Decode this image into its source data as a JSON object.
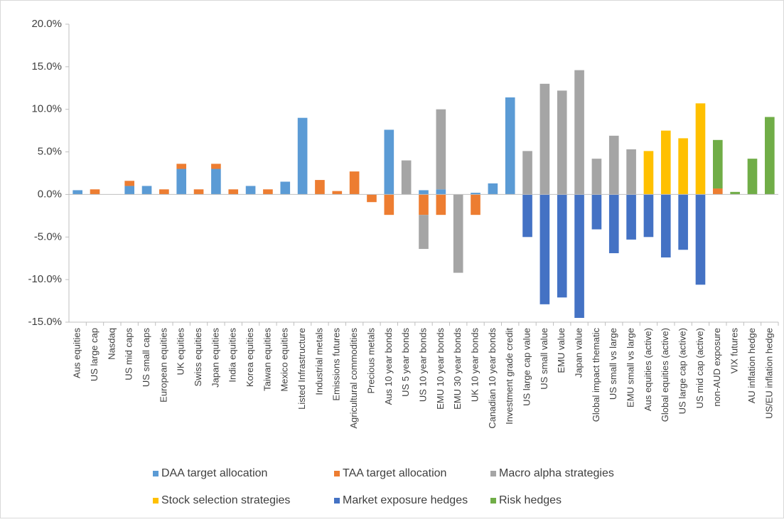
{
  "chart_data": {
    "type": "bar",
    "stacked": true,
    "categories": [
      "Aus equities",
      "US large cap",
      "Nasdaq",
      "US mid caps",
      "US small caps",
      "European equities",
      "UK equities",
      "Swiss equities",
      "Japan equities",
      "India equities",
      "Korea equities",
      "Taiwan equities",
      "Mexico equities",
      "Listed Infrastructure",
      "Industrial metals",
      "Emissions futures",
      "Agricultural commodities",
      "Precious metals",
      "Aus 10 year bonds",
      "US 5 year bonds",
      "US 10 year bonds",
      "EMU 10 year bonds",
      "EMU 30 year bonds",
      "UK 10 year bonds",
      "Canadian 10 year bonds",
      "Investment grade credit",
      "US large cap value",
      "US small value",
      "EMU value",
      "Japan value",
      "Global impact thematic",
      "US small vs large",
      "EMU small vs large",
      "Aus equities (active)",
      "Global equities (active)",
      "US large cap (active)",
      "US mid cap (active)",
      "non-AUD exposure",
      "VIX futures",
      "AU inflation hedge",
      "US/EU inflation hedge"
    ],
    "series": [
      {
        "name": "DAA target allocation",
        "color": "#5b9bd5",
        "values": [
          0.5,
          null,
          null,
          1.0,
          1.0,
          null,
          3.0,
          null,
          3.0,
          null,
          1.0,
          null,
          1.5,
          9.0,
          null,
          null,
          null,
          null,
          7.6,
          null,
          0.5,
          0.6,
          null,
          0.2,
          1.3,
          11.4,
          null,
          null,
          null,
          null,
          null,
          null,
          null,
          null,
          null,
          null,
          null,
          null,
          null,
          null,
          null
        ]
      },
      {
        "name": "TAA target allocation",
        "color": "#ed7d31",
        "values": [
          null,
          0.6,
          null,
          0.6,
          null,
          0.6,
          0.6,
          0.6,
          0.6,
          0.6,
          null,
          0.6,
          null,
          null,
          1.7,
          0.4,
          2.7,
          -0.9,
          -2.4,
          null,
          -2.4,
          -2.4,
          null,
          -2.4,
          null,
          null,
          null,
          null,
          null,
          null,
          null,
          null,
          null,
          null,
          null,
          null,
          null,
          0.7,
          null,
          null,
          null
        ]
      },
      {
        "name": "Macro alpha strategies",
        "color": "#a5a5a5",
        "values": [
          null,
          null,
          null,
          null,
          null,
          null,
          null,
          null,
          null,
          null,
          null,
          null,
          null,
          null,
          null,
          null,
          null,
          null,
          null,
          4.0,
          -4.0,
          9.4,
          -9.2,
          null,
          null,
          null,
          5.1,
          13.0,
          12.2,
          14.6,
          4.2,
          6.9,
          5.3,
          null,
          null,
          null,
          null,
          null,
          null,
          null,
          null
        ]
      },
      {
        "name": "Stock selection strategies",
        "color": "#ffc000",
        "values": [
          null,
          null,
          null,
          null,
          null,
          null,
          null,
          null,
          null,
          null,
          null,
          null,
          null,
          null,
          null,
          null,
          null,
          null,
          null,
          null,
          null,
          null,
          null,
          null,
          null,
          null,
          null,
          null,
          null,
          null,
          null,
          null,
          null,
          5.1,
          7.5,
          6.6,
          10.7,
          null,
          null,
          null,
          null
        ]
      },
      {
        "name": "Market exposure hedges",
        "color": "#4472c4",
        "values": [
          null,
          null,
          null,
          null,
          null,
          null,
          null,
          null,
          null,
          null,
          null,
          null,
          null,
          null,
          null,
          null,
          null,
          null,
          null,
          null,
          null,
          null,
          null,
          null,
          null,
          null,
          -5.0,
          -12.9,
          -12.1,
          -14.5,
          -4.1,
          -6.9,
          -5.3,
          -5.0,
          -7.4,
          -6.5,
          -10.6,
          null,
          null,
          null,
          null
        ]
      },
      {
        "name": "Risk hedges",
        "color": "#70ad47",
        "values": [
          null,
          null,
          null,
          null,
          null,
          null,
          null,
          null,
          null,
          null,
          null,
          null,
          null,
          null,
          null,
          null,
          null,
          null,
          null,
          null,
          null,
          null,
          null,
          null,
          null,
          null,
          null,
          null,
          null,
          null,
          null,
          null,
          null,
          null,
          null,
          null,
          null,
          5.7,
          0.3,
          4.2,
          9.1
        ]
      }
    ],
    "ylim": [
      -15,
      20
    ],
    "yticks": [
      {
        "value": -15,
        "label": "-15.0%"
      },
      {
        "value": -10,
        "label": "-10.0%"
      },
      {
        "value": -5,
        "label": "-5.0%"
      },
      {
        "value": 0,
        "label": "0.0%"
      },
      {
        "value": 5,
        "label": "5.0%"
      },
      {
        "value": 10,
        "label": "10.0%"
      },
      {
        "value": 15,
        "label": "15.0%"
      },
      {
        "value": 20,
        "label": "20.0%"
      }
    ],
    "grid": false,
    "legend": "bottom"
  }
}
